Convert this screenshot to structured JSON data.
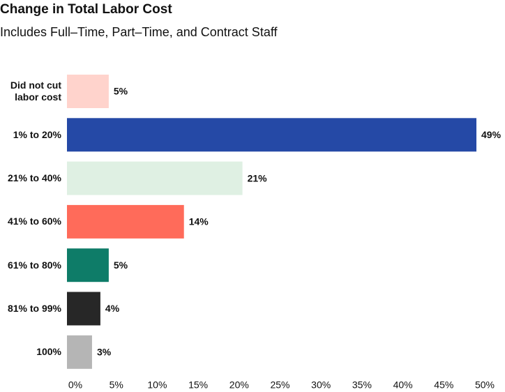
{
  "chart_data": {
    "type": "hbar",
    "title": "Change in Total Labor Cost",
    "subtitle": "Includes Full–Time, Part–Time, and Contract Staff",
    "categories": [
      "Did not cut labor cost",
      "1% to 20%",
      "21% to 40%",
      "41% to 60%",
      "61% to 80%",
      "81% to 99%",
      "100%"
    ],
    "values": [
      5,
      49,
      21,
      14,
      5,
      4,
      3
    ],
    "value_labels": [
      "5%",
      "49%",
      "21%",
      "14%",
      "5%",
      "4%",
      "3%"
    ],
    "colors": [
      "#ffd3cc",
      "#2549a6",
      "#dff0e3",
      "#ff6b5a",
      "#0e7c68",
      "#272727",
      "#b5b5b5"
    ],
    "xlim": [
      0,
      50
    ],
    "xticks": [
      {
        "value": 0,
        "label": "0%"
      },
      {
        "value": 5,
        "label": "5%"
      },
      {
        "value": 10,
        "label": "10%"
      },
      {
        "value": 15,
        "label": "15%"
      },
      {
        "value": 20,
        "label": "20%"
      },
      {
        "value": 25,
        "label": "25%"
      },
      {
        "value": 30,
        "label": "30%"
      },
      {
        "value": 35,
        "label": "35%"
      },
      {
        "value": 40,
        "label": "40%"
      },
      {
        "value": 45,
        "label": "45%"
      },
      {
        "value": 50,
        "label": "50%"
      }
    ],
    "grid": false
  }
}
